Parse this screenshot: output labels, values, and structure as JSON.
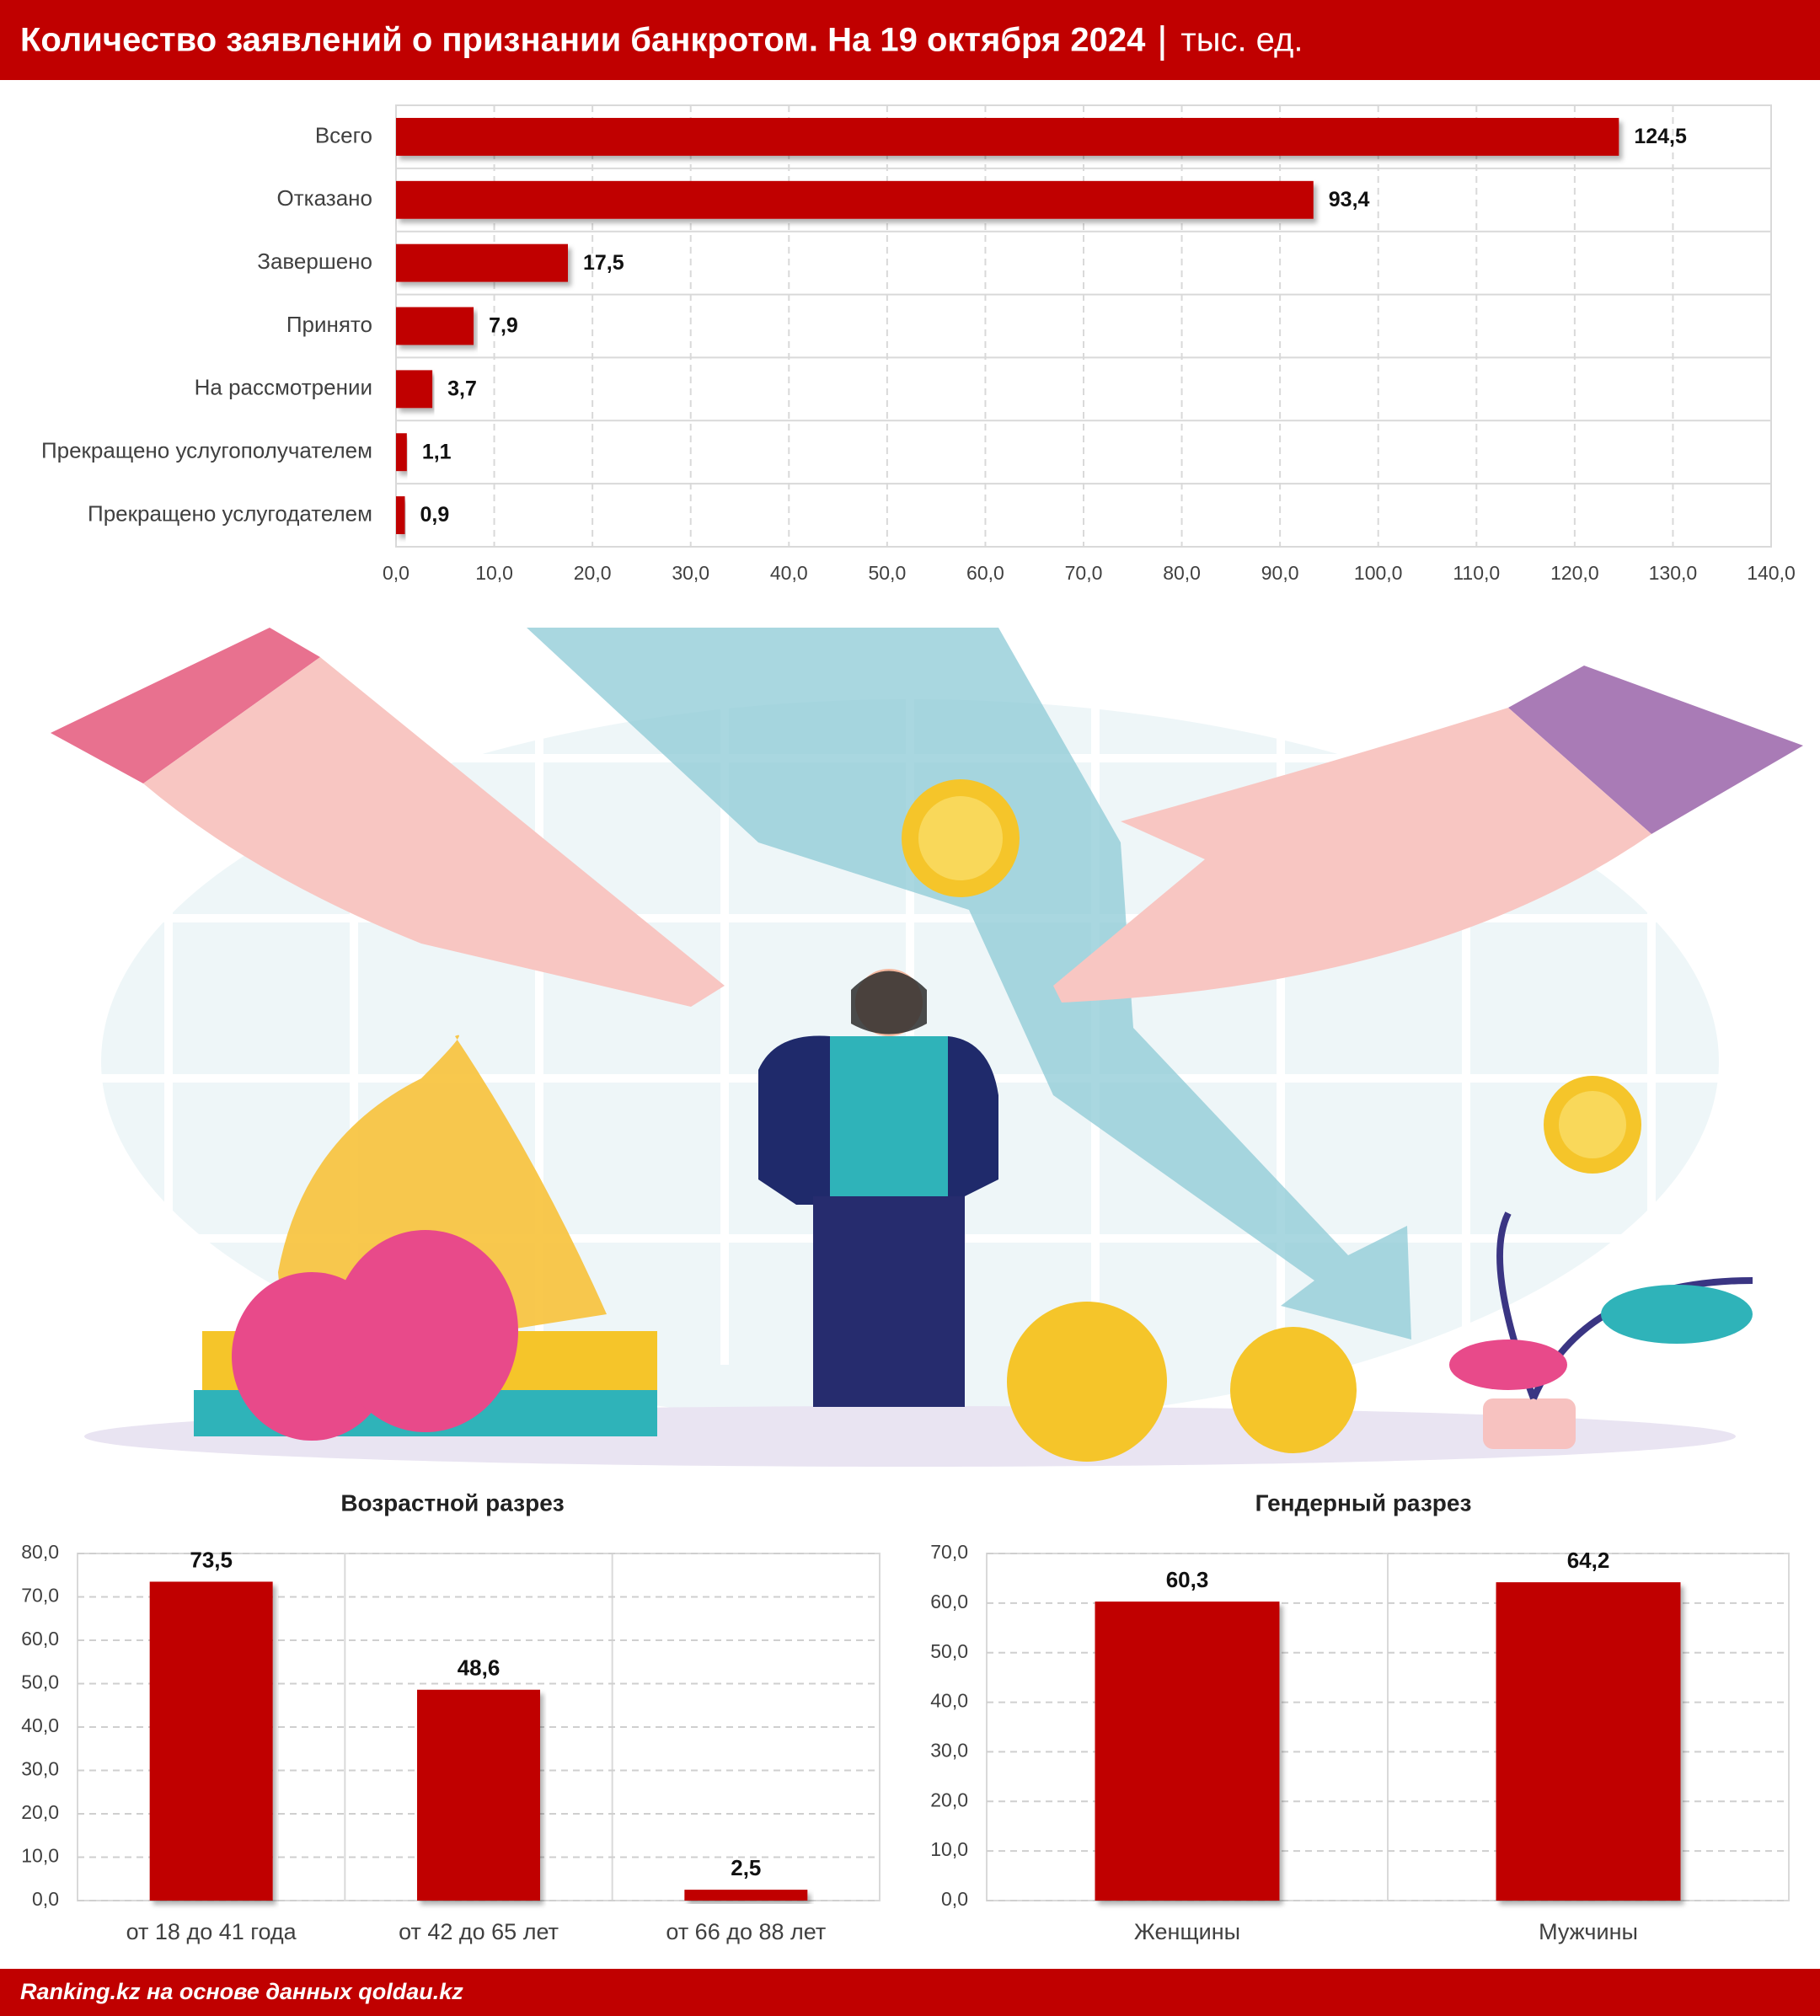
{
  "header": {
    "title": "Количество заявлений о признании банкротом. На 19 октября 2024",
    "unit": "тыс. ед."
  },
  "footer": {
    "source": "Ranking.kz на основе данных qoldau.kz"
  },
  "chart_data": [
    {
      "type": "barh",
      "color": "#c00000",
      "grid": true,
      "categories": [
        "Всего",
        "Отказано",
        "Завершено",
        "Принято",
        "На рассмотрении",
        "Прекращено услугополучателем",
        "Прекращено услугодателем"
      ],
      "values": [
        124.5,
        93.4,
        17.5,
        7.9,
        3.7,
        1.1,
        0.9
      ],
      "value_labels": [
        "124,5",
        "93,4",
        "17,5",
        "7,9",
        "3,7",
        "1,1",
        "0,9"
      ],
      "xlim": [
        0,
        140
      ],
      "xticks": [
        {
          "value": 0,
          "label": "0,0"
        },
        {
          "value": 10,
          "label": "10,0"
        },
        {
          "value": 20,
          "label": "20,0"
        },
        {
          "value": 30,
          "label": "30,0"
        },
        {
          "value": 40,
          "label": "40,0"
        },
        {
          "value": 50,
          "label": "50,0"
        },
        {
          "value": 60,
          "label": "60,0"
        },
        {
          "value": 70,
          "label": "70,0"
        },
        {
          "value": 80,
          "label": "80,0"
        },
        {
          "value": 90,
          "label": "90,0"
        },
        {
          "value": 100,
          "label": "100,0"
        },
        {
          "value": 110,
          "label": "110,0"
        },
        {
          "value": 120,
          "label": "120,0"
        },
        {
          "value": 130,
          "label": "130,0"
        },
        {
          "value": 140,
          "label": "140,0"
        }
      ]
    },
    {
      "type": "bar",
      "title": "Возрастной разрез",
      "color": "#c00000",
      "grid": true,
      "categories": [
        "от 18 до 41 года",
        "от 42 до 65 лет",
        "от 66 до 88 лет"
      ],
      "values": [
        73.5,
        48.6,
        2.5
      ],
      "value_labels": [
        "73,5",
        "48,6",
        "2,5"
      ],
      "ylim": [
        0,
        80
      ],
      "yticks": [
        {
          "value": 0,
          "label": "0,0"
        },
        {
          "value": 10,
          "label": "10,0"
        },
        {
          "value": 20,
          "label": "20,0"
        },
        {
          "value": 30,
          "label": "30,0"
        },
        {
          "value": 40,
          "label": "40,0"
        },
        {
          "value": 50,
          "label": "50,0"
        },
        {
          "value": 60,
          "label": "60,0"
        },
        {
          "value": 70,
          "label": "70,0"
        },
        {
          "value": 80,
          "label": "80,0"
        }
      ]
    },
    {
      "type": "bar",
      "title": "Гендерный разрез",
      "color": "#c00000",
      "grid": true,
      "categories": [
        "Женщины",
        "Мужчины"
      ],
      "values": [
        60.3,
        64.2
      ],
      "value_labels": [
        "60,3",
        "64,2"
      ],
      "ylim": [
        0,
        70
      ],
      "yticks": [
        {
          "value": 0,
          "label": "0,0"
        },
        {
          "value": 10,
          "label": "10,0"
        },
        {
          "value": 20,
          "label": "20,0"
        },
        {
          "value": 30,
          "label": "30,0"
        },
        {
          "value": 40,
          "label": "40,0"
        },
        {
          "value": 50,
          "label": "50,0"
        },
        {
          "value": 60,
          "label": "60,0"
        },
        {
          "value": 70,
          "label": "70,0"
        }
      ]
    }
  ]
}
